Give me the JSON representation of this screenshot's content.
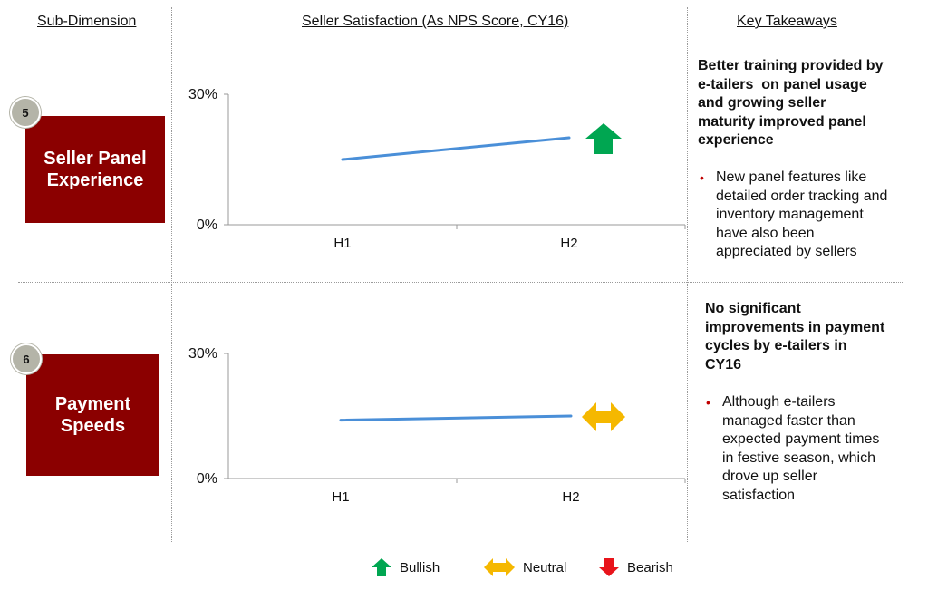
{
  "headers": {
    "subdimension": "Sub-Dimension",
    "chart": "Seller Satisfaction (As NPS Score, CY16)",
    "takeaways": "Key Takeaways"
  },
  "rows": [
    {
      "number": "5",
      "label_lines": [
        "Seller Panel",
        "Experience"
      ],
      "trend": "bullish",
      "takeaway_title": "Better training provided by e-tailers on panel usage and growing seller maturity improved panel experience",
      "takeaway_title_lines": [
        "Better training provided by",
        "e-tailers  on panel usage",
        "and growing seller",
        "maturity improved panel",
        "experience"
      ],
      "bullet": "New panel features like detailed order tracking and inventory management have also been appreciated by sellers",
      "bullet_lines": [
        "New panel features like",
        "detailed order tracking and",
        "inventory management",
        "have also been",
        "appreciated by sellers"
      ]
    },
    {
      "number": "6",
      "label_lines": [
        "Payment",
        "Speeds"
      ],
      "trend": "neutral",
      "takeaway_title": "No significant improvements in payment cycles by e-tailers in CY16",
      "takeaway_title_lines": [
        "No significant",
        "improvements in payment",
        "cycles by e-tailers in",
        "CY16"
      ],
      "bullet": "Although e-tailers managed faster than expected payment times in festive season, which drove up seller satisfaction",
      "bullet_lines": [
        "Although e-tailers",
        "managed faster than",
        "expected payment times",
        "in festive season, which",
        "drove up seller",
        "satisfaction"
      ]
    }
  ],
  "chart_data": [
    {
      "type": "line",
      "categories": [
        "H1",
        "H2"
      ],
      "values": [
        15,
        20
      ],
      "yticks": [
        "0%",
        "30%"
      ],
      "ylim": [
        0,
        30
      ],
      "grid": false,
      "color": "#4a8fd8"
    },
    {
      "type": "line",
      "categories": [
        "H1",
        "H2"
      ],
      "values": [
        14,
        15
      ],
      "yticks": [
        "0%",
        "30%"
      ],
      "ylim": [
        0,
        30
      ],
      "grid": false,
      "color": "#4a8fd8"
    }
  ],
  "legend": [
    {
      "key": "bullish",
      "label": "Bullish",
      "color": "#00a651",
      "icon": "arrow-up-icon"
    },
    {
      "key": "neutral",
      "label": "Neutral",
      "color": "#f5b800",
      "icon": "double-arrow-icon"
    },
    {
      "key": "bearish",
      "label": "Bearish",
      "color": "#e8141b",
      "icon": "arrow-down-icon"
    }
  ]
}
